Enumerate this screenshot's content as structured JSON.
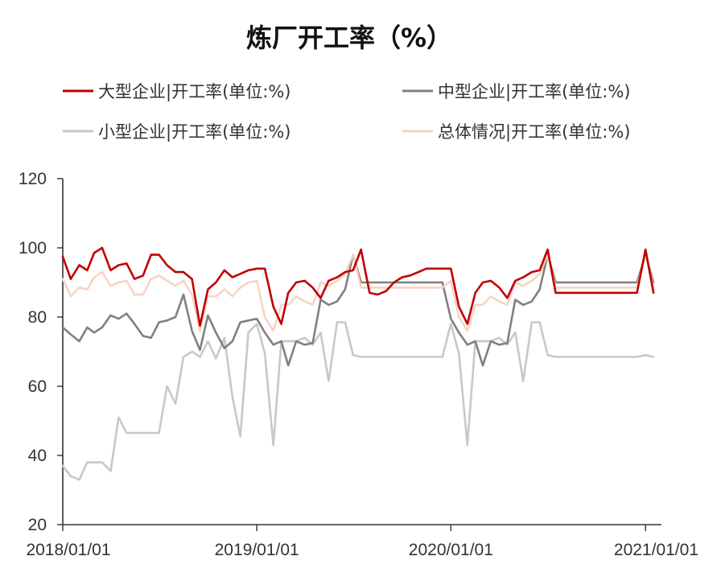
{
  "chart_data": {
    "type": "line",
    "title": "炼厂开工率（%）",
    "xlabel": "",
    "ylabel": "",
    "ylim": [
      20,
      120
    ],
    "yticks": [
      20,
      40,
      60,
      80,
      100,
      120
    ],
    "xlim": [
      "2018/01/01",
      "2021/01/31"
    ],
    "xticks": [
      "2018/01/01",
      "2019/01/01",
      "2020/01/01",
      "2021/01/01"
    ],
    "legend_position": "top",
    "x": [
      "2018/01/01",
      "2018/01/16",
      "2018/02/01",
      "2018/02/16",
      "2018/03/01",
      "2018/03/16",
      "2018/04/01",
      "2018/04/16",
      "2018/05/01",
      "2018/05/16",
      "2018/06/01",
      "2018/06/16",
      "2018/07/01",
      "2018/07/16",
      "2018/08/01",
      "2018/08/16",
      "2018/09/01",
      "2018/09/16",
      "2018/10/01",
      "2018/10/16",
      "2018/11/01",
      "2018/11/16",
      "2018/12/01",
      "2018/12/16",
      "2019/01/01",
      "2019/01/16",
      "2019/02/01",
      "2019/02/16",
      "2019/03/01",
      "2019/03/16",
      "2019/04/01",
      "2019/04/16",
      "2019/05/01",
      "2019/05/16",
      "2019/06/01",
      "2019/06/16",
      "2019/07/01",
      "2019/07/16",
      "2019/08/01",
      "2019/08/16",
      "2019/09/01",
      "2019/09/16",
      "2019/10/01",
      "2019/10/16",
      "2019/11/01",
      "2019/11/16",
      "2019/12/01",
      "2019/12/16",
      "2020/01/01",
      "2020/01/16",
      "2020/02/01",
      "2020/02/16",
      "2020/03/01",
      "2020/03/16",
      "2020/04/01",
      "2020/04/16",
      "2020/05/01",
      "2020/05/16",
      "2020/06/01",
      "2020/06/16",
      "2020/07/01",
      "2020/07/16",
      "2020/08/01",
      "2020/08/16",
      "2020/09/01",
      "2020/09/16",
      "2020/10/01",
      "2020/10/16",
      "2020/11/01",
      "2020/11/16",
      "2020/12/01",
      "2020/12/16",
      "2021/01/01",
      "2021/01/16"
    ],
    "series": [
      {
        "name": "大型企业|开工率(单位:%)",
        "color": "#c00000",
        "values": [
          97.5,
          91.0,
          95.0,
          93.5,
          98.5,
          100.0,
          93.5,
          95.0,
          95.5,
          91.0,
          92.0,
          98.0,
          98.0,
          95.0,
          93.0,
          93.0,
          91.0,
          77.5,
          88.0,
          90.0,
          93.5,
          91.5,
          92.5,
          93.5,
          94.0,
          94.0,
          83.0,
          78.0,
          87.0,
          90.0,
          90.5,
          88.5,
          85.5,
          90.5,
          91.5,
          93.0,
          93.5,
          99.5,
          87.0,
          86.5,
          87.5,
          90.0,
          91.5,
          92.0,
          93.0,
          94.0,
          94.0,
          94.0,
          94.0,
          83.0,
          78.0,
          87.0,
          90.0,
          90.5,
          88.5,
          85.5,
          90.5,
          91.5,
          93.0,
          93.5,
          99.5,
          87.0,
          87.0,
          87.0,
          87.0,
          87.0,
          87.0,
          87.0,
          87.0,
          87.0,
          87.0,
          87.0,
          99.5,
          87.0
        ]
      },
      {
        "name": "中型企业|开工率(单位:%)",
        "color": "#808080",
        "values": [
          77.0,
          75.0,
          73.0,
          77.0,
          75.5,
          77.0,
          80.5,
          79.5,
          81.0,
          78.0,
          74.5,
          74.0,
          78.5,
          79.0,
          80.0,
          86.5,
          76.0,
          70.5,
          80.5,
          75.5,
          71.0,
          73.0,
          78.5,
          79.0,
          79.5,
          75.5,
          72.0,
          73.0,
          66.0,
          73.0,
          72.0,
          72.5,
          85.0,
          83.5,
          84.5,
          88.0,
          98.0,
          90.0,
          90.0,
          90.0,
          90.0,
          90.0,
          90.0,
          90.0,
          90.0,
          90.0,
          90.0,
          90.0,
          79.5,
          75.5,
          72.0,
          73.0,
          66.0,
          73.0,
          72.0,
          72.5,
          85.0,
          83.5,
          84.5,
          88.0,
          98.0,
          90.0,
          90.0,
          90.0,
          90.0,
          90.0,
          90.0,
          90.0,
          90.0,
          90.0,
          90.0,
          90.0,
          98.0,
          90.0
        ]
      },
      {
        "name": "小型企业|开工率(单位:%)",
        "color": "#c8c8c8",
        "values": [
          37.0,
          34.0,
          33.0,
          38.0,
          38.0,
          38.0,
          35.5,
          51.0,
          46.5,
          46.5,
          46.5,
          46.5,
          46.5,
          60.0,
          55.0,
          68.5,
          70.0,
          68.5,
          73.0,
          68.0,
          74.0,
          57.0,
          45.5,
          75.5,
          78.0,
          69.5,
          43.0,
          73.0,
          73.0,
          73.0,
          74.0,
          72.0,
          75.5,
          61.5,
          78.5,
          78.5,
          69.0,
          68.5,
          68.5,
          68.5,
          68.5,
          68.5,
          68.5,
          68.5,
          68.5,
          68.5,
          68.5,
          68.5,
          78.0,
          69.5,
          43.0,
          73.0,
          73.0,
          73.0,
          74.0,
          72.0,
          75.5,
          61.5,
          78.5,
          78.5,
          69.0,
          68.5,
          68.5,
          68.5,
          68.5,
          68.5,
          68.5,
          68.5,
          68.5,
          68.5,
          68.5,
          68.5,
          69.0,
          68.5
        ]
      },
      {
        "name": "总体情况|开工率(单位:%)",
        "color": "#f8d3c4",
        "values": [
          91.0,
          86.0,
          88.5,
          88.0,
          91.5,
          93.0,
          89.0,
          90.0,
          90.5,
          86.5,
          86.5,
          91.0,
          92.0,
          90.5,
          89.0,
          90.5,
          86.5,
          76.0,
          86.0,
          86.0,
          88.0,
          86.0,
          88.5,
          90.0,
          90.5,
          80.0,
          76.0,
          83.5,
          83.5,
          86.0,
          84.5,
          83.5,
          90.0,
          89.0,
          90.5,
          92.5,
          98.0,
          88.5,
          88.5,
          88.5,
          88.5,
          88.5,
          88.5,
          88.5,
          88.5,
          88.5,
          88.5,
          88.5,
          90.5,
          80.0,
          76.0,
          83.5,
          83.5,
          86.0,
          84.5,
          83.5,
          90.0,
          89.0,
          90.5,
          92.5,
          98.0,
          88.5,
          88.5,
          88.5,
          88.5,
          88.5,
          88.5,
          88.5,
          88.5,
          88.5,
          88.5,
          88.5,
          98.0,
          88.5
        ]
      }
    ]
  }
}
